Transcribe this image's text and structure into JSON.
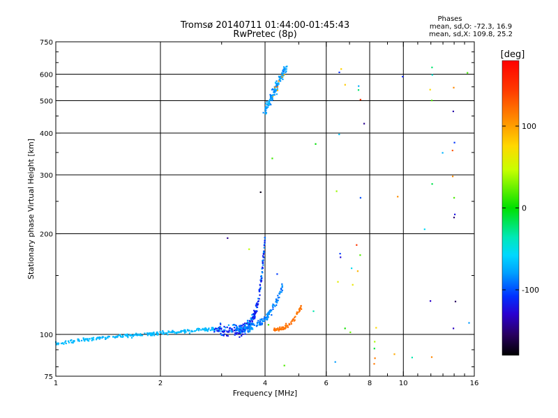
{
  "chart_data": {
    "type": "scatter",
    "title": "Tromsø 20140711 01:44:00-01:45:43",
    "subtitle": "RwPretec (8p)",
    "xlabel": "Frequency [MHz]",
    "ylabel": "Stationary phase Virtual Height [km]",
    "x_scale": "log",
    "y_scale": "log",
    "xlim": [
      1,
      16
    ],
    "ylim": [
      75,
      750
    ],
    "x_ticks": [
      1,
      2,
      4,
      6,
      8,
      10,
      16
    ],
    "x_tick_labels": [
      "1",
      "2",
      "4",
      "6",
      "8",
      "10",
      "16"
    ],
    "x_gridlines": [
      2,
      4,
      6,
      8,
      10
    ],
    "y_ticks": [
      75,
      100,
      200,
      300,
      400,
      500,
      600,
      750
    ],
    "y_tick_labels": [
      "75",
      "100",
      "200",
      "300",
      "400",
      "500",
      "600",
      "750"
    ],
    "y_gridlines": [
      100,
      200,
      300,
      400,
      500,
      600
    ],
    "grid": true,
    "stats": {
      "header": "Phases",
      "line1": "mean, sd,O: -72.3, 16.9",
      "line2": "mean, sd,X: 109.8, 25.2"
    },
    "colorbar": {
      "label": "[deg]",
      "range": [
        -180,
        180
      ],
      "ticks": [
        100,
        0,
        -100
      ],
      "tick_labels": [
        "100",
        "0",
        "-100"
      ]
    },
    "clusters": [
      {
        "name": "low-frequency trace",
        "phase_deg": -70,
        "x_range": [
          1.0,
          2.9
        ],
        "y_range": [
          94,
          104
        ],
        "count": 240
      },
      {
        "name": "o-trace knee",
        "phase_deg": -115,
        "x_range": [
          2.8,
          4.0
        ],
        "y_range": [
          103,
          196
        ],
        "count": 260
      },
      {
        "name": "x-trace",
        "phase_deg": -85,
        "x_range": [
          3.3,
          4.5
        ],
        "y_range": [
          104,
          140
        ],
        "count": 140
      },
      {
        "name": "orange x-mode branch",
        "phase_deg": 120,
        "x_range": [
          4.2,
          5.1
        ],
        "y_range": [
          103,
          122
        ],
        "count": 70
      },
      {
        "name": "F-region cusp",
        "phase_deg": -80,
        "x_range": [
          4.0,
          4.6
        ],
        "y_range": [
          460,
          630
        ],
        "count": 130
      },
      {
        "name": "scattered points",
        "phase_deg": 0,
        "x_range": [
          2.8,
          16
        ],
        "y_range": [
          80,
          630
        ],
        "count": 60
      }
    ]
  }
}
